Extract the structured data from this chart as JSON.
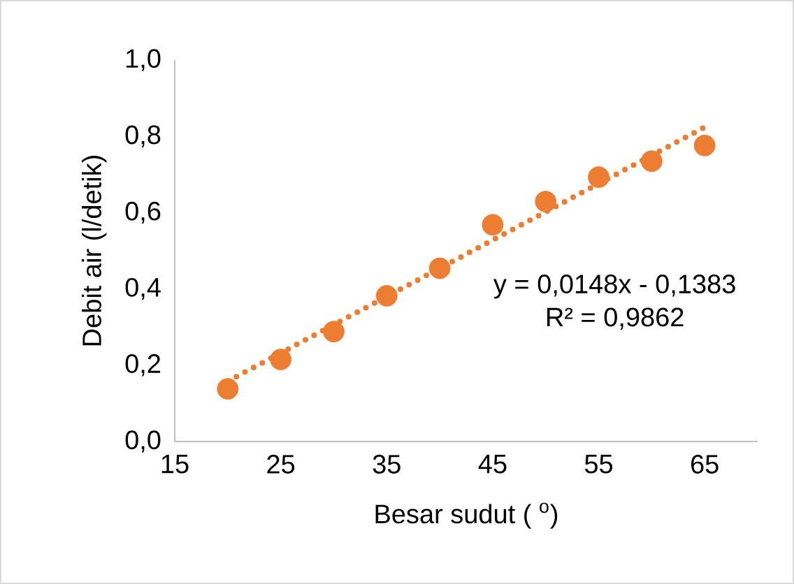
{
  "chart_data": {
    "type": "scatter",
    "xlabel": "Besar sudut ( $^{o}$)",
    "ylabel": "Debit air (l/detik)",
    "xlim": [
      15,
      70
    ],
    "xticks": [
      15,
      25,
      35,
      45,
      55,
      65
    ],
    "ylim": [
      0,
      1
    ],
    "yticks": [
      {
        "value": 0,
        "label": "0,0"
      },
      {
        "value": 0.2,
        "label": "0,2"
      },
      {
        "value": 0.4,
        "label": "0,4"
      },
      {
        "value": 0.6,
        "label": "0,6"
      },
      {
        "value": 0.8,
        "label": "0,8"
      },
      {
        "value": 1,
        "label": "1,0"
      }
    ],
    "grid": false,
    "series": [
      {
        "color": "#ed7d31",
        "marker": "circle",
        "x": [
          20,
          25,
          30,
          35,
          40,
          45,
          50,
          55,
          60,
          65
        ],
        "values": [
          0.138,
          0.215,
          0.288,
          0.382,
          0.454,
          0.568,
          0.629,
          0.693,
          0.735,
          0.776
        ]
      },
      {
        "type": "line",
        "color": "#ed7d31",
        "line_style": "dotted",
        "marker": "none",
        "x": [
          20,
          65
        ],
        "values": [
          0.158,
          0.824
        ]
      }
    ],
    "annotations": [
      "y = 0,0148x - 0,1383",
      "R² = 0,9862"
    ]
  }
}
